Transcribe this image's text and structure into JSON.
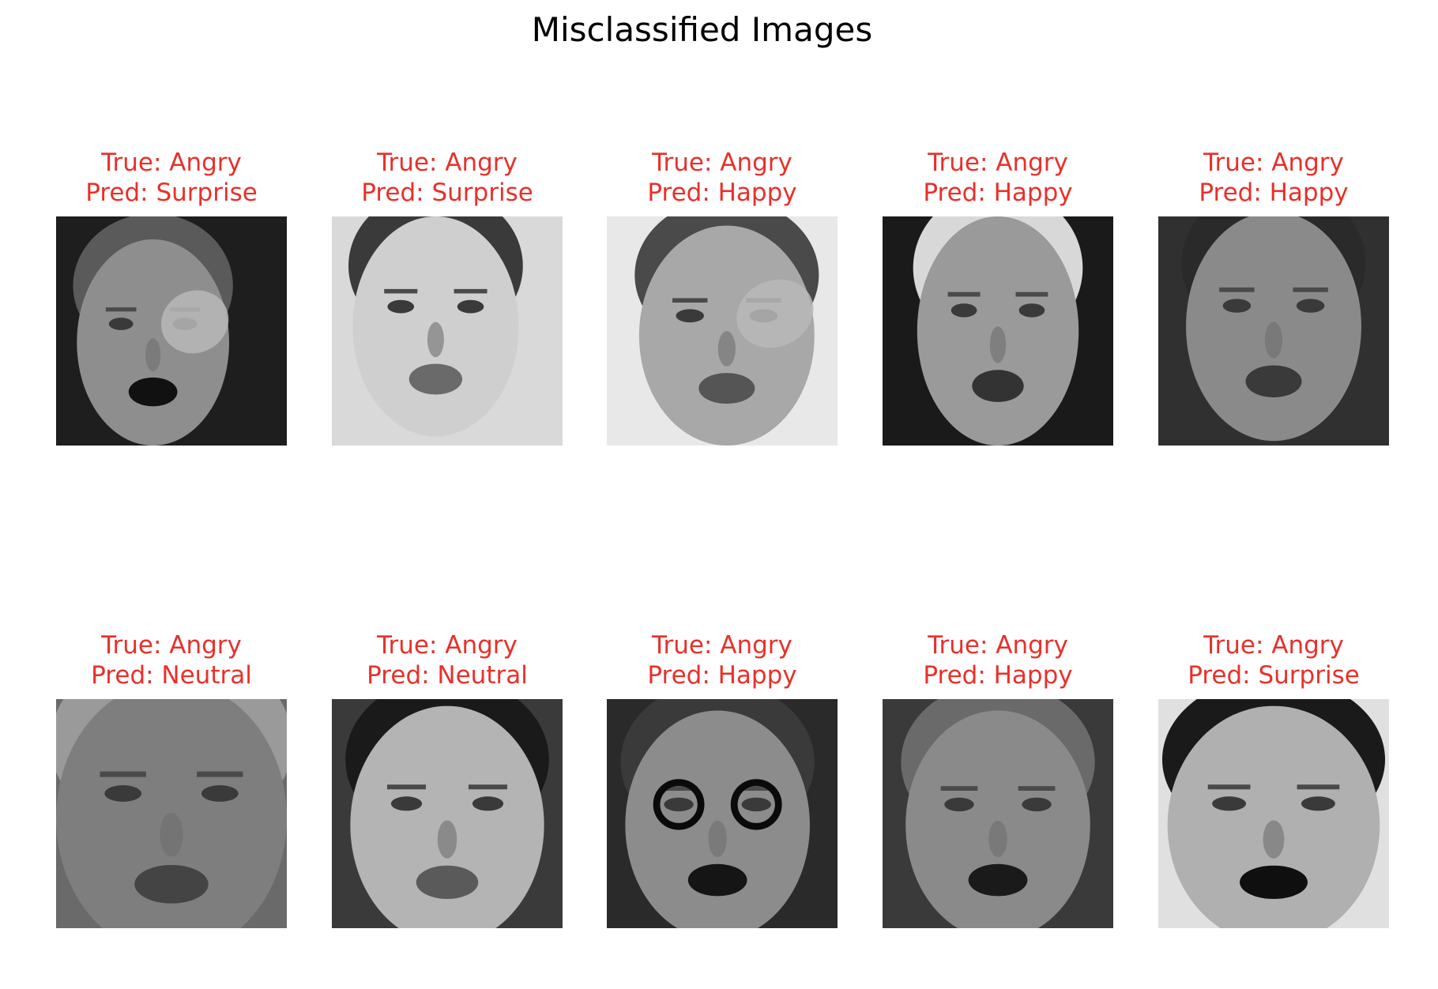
{
  "title": "Misclassified Images",
  "colors": {
    "caption": "#e8302a",
    "title": "#000000",
    "background": "#ffffff"
  },
  "images": [
    {
      "true_label": "True: Angry",
      "pred_label": "Pred: Surprise",
      "icon": "face-thumbnail"
    },
    {
      "true_label": "True: Angry",
      "pred_label": "Pred: Surprise",
      "icon": "face-thumbnail"
    },
    {
      "true_label": "True: Angry",
      "pred_label": "Pred: Happy",
      "icon": "face-thumbnail"
    },
    {
      "true_label": "True: Angry",
      "pred_label": "Pred: Happy",
      "icon": "face-thumbnail"
    },
    {
      "true_label": "True: Angry",
      "pred_label": "Pred: Happy",
      "icon": "face-thumbnail"
    },
    {
      "true_label": "True: Angry",
      "pred_label": "Pred: Neutral",
      "icon": "face-thumbnail"
    },
    {
      "true_label": "True: Angry",
      "pred_label": "Pred: Neutral",
      "icon": "face-thumbnail"
    },
    {
      "true_label": "True: Angry",
      "pred_label": "Pred: Happy",
      "icon": "face-thumbnail"
    },
    {
      "true_label": "True: Angry",
      "pred_label": "Pred: Happy",
      "icon": "face-thumbnail"
    },
    {
      "true_label": "True: Angry",
      "pred_label": "Pred: Surprise",
      "icon": "face-thumbnail"
    }
  ]
}
